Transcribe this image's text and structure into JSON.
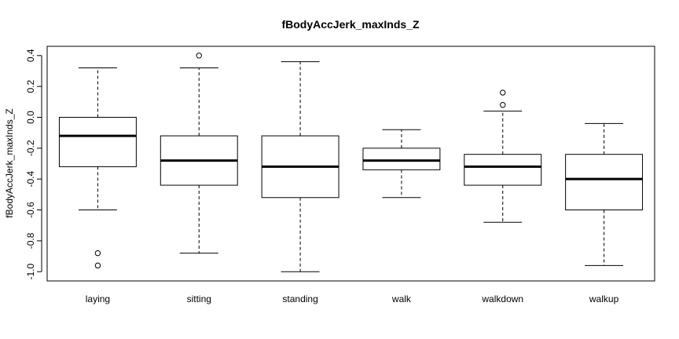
{
  "chart_data": {
    "type": "box",
    "title": "fBodyAccJerk_maxInds_Z",
    "xlabel": "",
    "ylabel": "fBodyAccJerk_maxInds_Z",
    "ylim": [
      -1.06,
      0.46
    ],
    "yticks": [
      -1.0,
      -0.8,
      -0.6,
      -0.4,
      -0.2,
      0.0,
      0.2,
      0.4
    ],
    "ytick_labels": [
      "-1.0",
      "-0.8",
      "-0.6",
      "-0.4",
      "-0.2",
      "0.0",
      "0.2",
      "0.4"
    ],
    "categories": [
      "laying",
      "sitting",
      "standing",
      "walk",
      "walkdown",
      "walkup"
    ],
    "boxes": [
      {
        "whisker_low": -0.6,
        "q1": -0.32,
        "median": -0.12,
        "q3": 0.0,
        "whisker_high": 0.32,
        "outliers": [
          -0.88,
          -0.96
        ]
      },
      {
        "whisker_low": -0.88,
        "q1": -0.44,
        "median": -0.28,
        "q3": -0.12,
        "whisker_high": 0.32,
        "outliers": [
          0.4
        ]
      },
      {
        "whisker_low": -1.0,
        "q1": -0.52,
        "median": -0.32,
        "q3": -0.12,
        "whisker_high": 0.36,
        "outliers": []
      },
      {
        "whisker_low": -0.52,
        "q1": -0.34,
        "median": -0.28,
        "q3": -0.2,
        "whisker_high": -0.08,
        "outliers": []
      },
      {
        "whisker_low": -0.68,
        "q1": -0.44,
        "median": -0.32,
        "q3": -0.24,
        "whisker_high": 0.04,
        "outliers": [
          0.16,
          0.08
        ]
      },
      {
        "whisker_low": -0.96,
        "q1": -0.6,
        "median": -0.4,
        "q3": -0.24,
        "whisker_high": -0.04,
        "outliers": []
      }
    ],
    "grid": false,
    "legend": "none"
  }
}
